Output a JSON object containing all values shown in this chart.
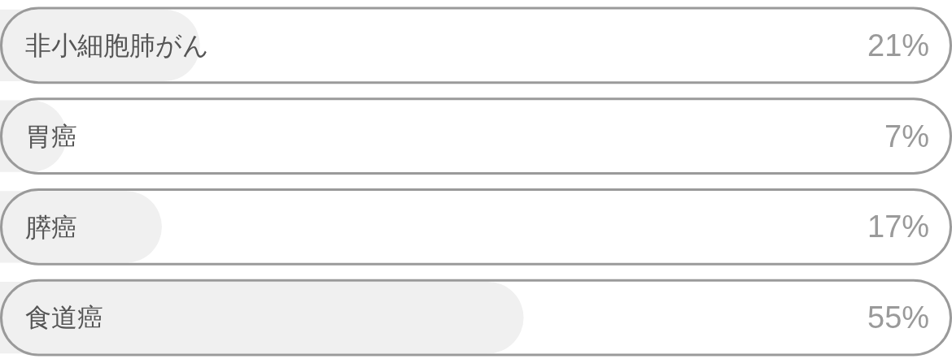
{
  "chart_data": {
    "type": "bar",
    "orientation": "horizontal",
    "categories": [
      "非小細胞肺がん",
      "胃癌",
      "膵癌",
      "食道癌"
    ],
    "values": [
      21,
      7,
      17,
      55
    ],
    "value_labels": [
      "21%",
      "7%",
      "17%",
      "55%"
    ],
    "color": "#f0f0f0",
    "xlim": [
      0,
      100
    ],
    "tick_labels": "y"
  }
}
